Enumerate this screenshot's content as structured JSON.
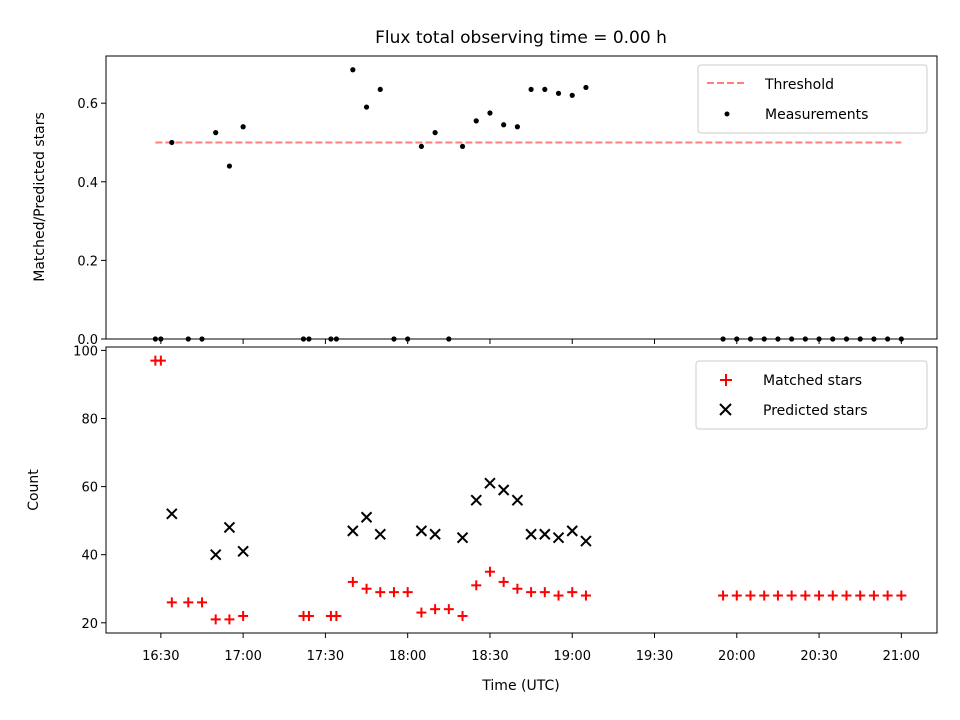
{
  "chart_data": [
    {
      "type": "scatter",
      "title": "Flux total observing time = 0.00 h",
      "xlabel": "",
      "ylabel": "Matched/Predicted stars",
      "xlim": [
        "16:10",
        "21:13"
      ],
      "ylim": [
        0,
        0.72
      ],
      "yticks": [
        0.0,
        0.2,
        0.4,
        0.6
      ],
      "ytick_labels": [
        "0.0",
        "0.2",
        "0.4",
        "0.6"
      ],
      "legend_placement": "upper right",
      "threshold": {
        "name": "Threshold",
        "value": 0.5,
        "x_range": [
          "16:28",
          "21:00"
        ],
        "color": "#ff7f7f",
        "style": "dashed"
      },
      "series": [
        {
          "name": "Measurements",
          "color": "#000000",
          "marker": "dot",
          "x": [
            "16:28",
            "16:30",
            "16:34",
            "16:40",
            "16:45",
            "16:50",
            "16:55",
            "17:00",
            "17:22",
            "17:24",
            "17:32",
            "17:34",
            "17:40",
            "17:45",
            "17:50",
            "17:55",
            "18:00",
            "18:05",
            "18:10",
            "18:15",
            "18:20",
            "18:25",
            "18:30",
            "18:35",
            "18:40",
            "18:45",
            "18:50",
            "18:55",
            "19:00",
            "19:05",
            "19:55",
            "20:00",
            "20:05",
            "20:10",
            "20:15",
            "20:20",
            "20:25",
            "20:30",
            "20:35",
            "20:40",
            "20:45",
            "20:50",
            "20:55",
            "21:00"
          ],
          "y": [
            0,
            0,
            0.5,
            0,
            0,
            0.525,
            0.44,
            0.54,
            0,
            0,
            0,
            0,
            0.685,
            0.59,
            0.635,
            0,
            0,
            0.49,
            0.525,
            0,
            0.49,
            0.555,
            0.575,
            0.545,
            0.54,
            0.635,
            0.635,
            0.625,
            0.62,
            0.64,
            0,
            0,
            0,
            0,
            0,
            0,
            0,
            0,
            0,
            0,
            0,
            0,
            0,
            0
          ]
        }
      ]
    },
    {
      "type": "scatter",
      "title": "",
      "xlabel": "Time (UTC)",
      "ylabel": "Count",
      "xlim": [
        "16:10",
        "21:13"
      ],
      "ylim": [
        17,
        101
      ],
      "yticks": [
        20,
        40,
        60,
        80,
        100
      ],
      "ytick_labels": [
        "20",
        "40",
        "60",
        "80",
        "100"
      ],
      "xticks": [
        "16:30",
        "17:00",
        "17:30",
        "18:00",
        "18:30",
        "19:00",
        "19:30",
        "20:00",
        "20:30",
        "21:00"
      ],
      "legend_placement": "upper right",
      "series": [
        {
          "name": "Matched stars",
          "color": "#ff0000",
          "marker": "plus",
          "x": [
            "16:28",
            "16:30",
            "16:34",
            "16:40",
            "16:45",
            "16:50",
            "16:55",
            "17:00",
            "17:22",
            "17:24",
            "17:32",
            "17:34",
            "17:40",
            "17:45",
            "17:50",
            "17:55",
            "18:00",
            "18:05",
            "18:10",
            "18:15",
            "18:20",
            "18:25",
            "18:30",
            "18:35",
            "18:40",
            "18:45",
            "18:50",
            "18:55",
            "19:00",
            "19:05",
            "19:55",
            "20:00",
            "20:05",
            "20:10",
            "20:15",
            "20:20",
            "20:25",
            "20:30",
            "20:35",
            "20:40",
            "20:45",
            "20:50",
            "20:55",
            "21:00"
          ],
          "y": [
            97,
            97,
            26,
            26,
            26,
            21,
            21,
            22,
            22,
            22,
            22,
            22,
            32,
            30,
            29,
            29,
            29,
            23,
            24,
            24,
            22,
            31,
            35,
            32,
            30,
            29,
            29,
            28,
            29,
            28,
            28,
            28,
            28,
            28,
            28,
            28,
            28,
            28,
            28,
            28,
            28,
            28,
            28,
            28
          ]
        },
        {
          "name": "Predicted stars",
          "color": "#000000",
          "marker": "x",
          "x": [
            "16:34",
            "16:50",
            "16:55",
            "17:00",
            "17:40",
            "17:45",
            "17:50",
            "18:05",
            "18:10",
            "18:20",
            "18:25",
            "18:30",
            "18:35",
            "18:40",
            "18:45",
            "18:50",
            "18:55",
            "19:00",
            "19:05"
          ],
          "y": [
            52,
            40,
            48,
            41,
            47,
            51,
            46,
            47,
            46,
            45,
            56,
            61,
            59,
            56,
            46,
            46,
            45,
            47,
            44
          ]
        }
      ]
    }
  ]
}
